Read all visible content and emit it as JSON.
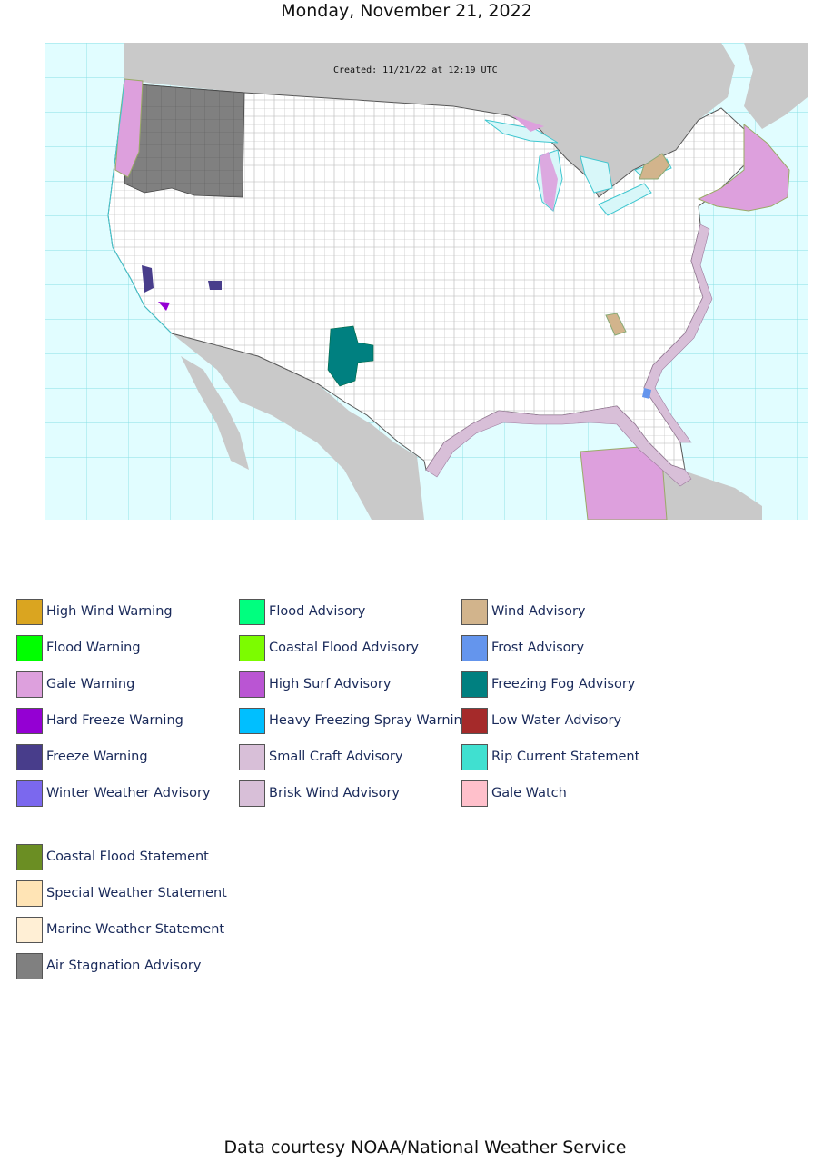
{
  "header": {
    "title": "Monday, November 21, 2022"
  },
  "map": {
    "created": "Created: 11/21/22 at 12:19 UTC"
  },
  "legend": {
    "col1": [
      {
        "label": "High Wind Warning",
        "color": "#DAA520"
      },
      {
        "label": "Flood Warning",
        "color": "#00FF00"
      },
      {
        "label": "Gale Warning",
        "color": "#DDA0DD"
      },
      {
        "label": "Hard Freeze Warning",
        "color": "#9400D3"
      },
      {
        "label": "Freeze Warning",
        "color": "#483D8B"
      },
      {
        "label": "Winter Weather Advisory",
        "color": "#7B68EE"
      }
    ],
    "col2": [
      {
        "label": "Flood Advisory",
        "color": "#00FF7F"
      },
      {
        "label": "Coastal Flood Advisory",
        "color": "#7CFC00"
      },
      {
        "label": "High Surf Advisory",
        "color": "#BA55D3"
      },
      {
        "label": "Heavy Freezing Spray Warning",
        "color": "#00BFFF"
      },
      {
        "label": "Small Craft Advisory",
        "color": "#D8BFD8"
      },
      {
        "label": "Brisk Wind Advisory",
        "color": "#D8BFD8"
      }
    ],
    "col3": [
      {
        "label": "Wind Advisory",
        "color": "#D2B48C"
      },
      {
        "label": "Frost Advisory",
        "color": "#6495ED"
      },
      {
        "label": "Freezing Fog Advisory",
        "color": "#008080"
      },
      {
        "label": "Low Water Advisory",
        "color": "#A52A2A"
      },
      {
        "label": "Rip Current Statement",
        "color": "#40E0D0"
      },
      {
        "label": "Gale Watch",
        "color": "#FFC0CB"
      }
    ],
    "col4": [
      {
        "label": "Coastal Flood Statement",
        "color": "#6B8E23"
      },
      {
        "label": "Special Weather Statement",
        "color": "#FFE4B5"
      },
      {
        "label": "Marine Weather Statement",
        "color": "#FFEFD5"
      },
      {
        "label": "Air Stagnation Advisory",
        "color": "#808080"
      }
    ]
  },
  "footer": {
    "text": "Data courtesy NOAA/National Weather Service"
  }
}
